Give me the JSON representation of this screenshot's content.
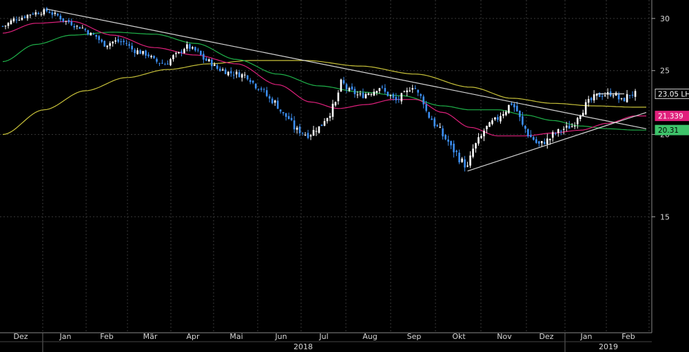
{
  "chart_data": {
    "type": "candlestick",
    "ylim": [
      10,
      32
    ],
    "grid": true,
    "x_ticks": [
      "Dez",
      "Jan",
      "Feb",
      "Mär",
      "Apr",
      "Mai",
      "Jun",
      "Jul",
      "Aug",
      "Sep",
      "Okt",
      "Nov",
      "Dez",
      "Jan",
      "Feb"
    ],
    "x_years": [
      "2018",
      "2019"
    ],
    "y_ticks": [
      15,
      20,
      25,
      30
    ],
    "last_values": {
      "price": "23.05 LH",
      "ma_magenta": "21.339",
      "ma_green": "20.31"
    },
    "colors": {
      "up": "#ffffff",
      "down": "#3c8ff2",
      "ma_magenta": "#e0207c",
      "ma_green": "#1fb24a",
      "ma_yellow": "#c9c33a",
      "trend": "#d6d6d6",
      "grid": "#3a3a3a"
    },
    "price_anchors": [
      [
        0,
        29.2
      ],
      [
        5,
        30.0
      ],
      [
        12,
        30.6
      ],
      [
        16,
        30.8
      ],
      [
        19,
        30.4
      ],
      [
        23,
        29.7
      ],
      [
        28,
        29.1
      ],
      [
        33,
        28.3
      ],
      [
        37,
        27.4
      ],
      [
        41,
        27.7
      ],
      [
        44,
        27.6
      ],
      [
        48,
        26.8
      ],
      [
        52,
        26.5
      ],
      [
        56,
        25.8
      ],
      [
        59,
        25.6
      ],
      [
        63,
        26.4
      ],
      [
        67,
        27.2
      ],
      [
        70,
        26.8
      ],
      [
        74,
        25.9
      ],
      [
        79,
        25.1
      ],
      [
        83,
        24.8
      ],
      [
        88,
        24.6
      ],
      [
        93,
        23.6
      ],
      [
        98,
        22.5
      ],
      [
        103,
        21.3
      ],
      [
        107,
        20.3
      ],
      [
        111,
        20.0
      ],
      [
        115,
        20.5
      ],
      [
        118,
        21.3
      ],
      [
        121,
        22.3
      ],
      [
        123,
        24.0
      ],
      [
        126,
        23.3
      ],
      [
        130,
        22.9
      ],
      [
        134,
        23.2
      ],
      [
        137,
        23.6
      ],
      [
        140,
        23.0
      ],
      [
        143,
        22.5
      ],
      [
        146,
        23.0
      ],
      [
        149,
        23.7
      ],
      [
        152,
        22.8
      ],
      [
        155,
        21.3
      ],
      [
        158,
        20.5
      ],
      [
        161,
        19.7
      ],
      [
        164,
        18.9
      ],
      [
        167,
        18.2
      ],
      [
        169,
        17.8
      ],
      [
        171,
        19.0
      ],
      [
        173,
        19.6
      ],
      [
        176,
        20.5
      ],
      [
        179,
        21.0
      ],
      [
        182,
        21.6
      ],
      [
        185,
        22.3
      ],
      [
        187,
        21.7
      ],
      [
        189,
        20.6
      ],
      [
        192,
        19.8
      ],
      [
        195,
        19.3
      ],
      [
        198,
        19.6
      ],
      [
        201,
        20.1
      ],
      [
        204,
        20.4
      ],
      [
        207,
        20.6
      ],
      [
        210,
        21.6
      ],
      [
        213,
        22.4
      ],
      [
        216,
        22.9
      ],
      [
        219,
        23.0
      ],
      [
        222,
        23.1
      ],
      [
        225,
        22.5
      ],
      [
        228,
        23.0
      ],
      [
        230,
        23.05
      ]
    ],
    "ma_magenta_anchors": [
      [
        0,
        28.5
      ],
      [
        12,
        29.5
      ],
      [
        25,
        29.7
      ],
      [
        40,
        28.3
      ],
      [
        55,
        27.1
      ],
      [
        70,
        26.4
      ],
      [
        85,
        25.6
      ],
      [
        100,
        23.8
      ],
      [
        112,
        22.4
      ],
      [
        122,
        21.9
      ],
      [
        132,
        22.2
      ],
      [
        142,
        22.6
      ],
      [
        150,
        22.6
      ],
      [
        160,
        21.6
      ],
      [
        170,
        20.5
      ],
      [
        180,
        19.9
      ],
      [
        190,
        19.9
      ],
      [
        200,
        20.1
      ],
      [
        210,
        20.3
      ],
      [
        220,
        20.8
      ],
      [
        230,
        21.339
      ]
    ],
    "ma_green_anchors": [
      [
        0,
        25.8
      ],
      [
        12,
        27.4
      ],
      [
        25,
        28.3
      ],
      [
        40,
        28.6
      ],
      [
        55,
        28.4
      ],
      [
        70,
        27.5
      ],
      [
        85,
        26.0
      ],
      [
        100,
        24.7
      ],
      [
        115,
        23.7
      ],
      [
        130,
        23.2
      ],
      [
        145,
        22.9
      ],
      [
        160,
        22.1
      ],
      [
        170,
        21.8
      ],
      [
        180,
        21.8
      ],
      [
        190,
        21.4
      ],
      [
        200,
        21.0
      ],
      [
        210,
        20.6
      ],
      [
        220,
        20.4
      ],
      [
        230,
        20.31
      ]
    ],
    "ma_yellow_anchors": [
      [
        0,
        20.0
      ],
      [
        15,
        21.8
      ],
      [
        30,
        23.3
      ],
      [
        45,
        24.4
      ],
      [
        60,
        25.1
      ],
      [
        75,
        25.6
      ],
      [
        90,
        25.9
      ],
      [
        110,
        25.9
      ],
      [
        130,
        25.4
      ],
      [
        150,
        24.7
      ],
      [
        170,
        23.6
      ],
      [
        185,
        22.7
      ],
      [
        200,
        22.3
      ],
      [
        215,
        22.1
      ],
      [
        230,
        22.0
      ]
    ],
    "trendlines": [
      {
        "from": [
          16,
          31.0
        ],
        "to": [
          234,
          20.4
        ]
      },
      {
        "from": [
          169,
          17.6
        ],
        "to": [
          234,
          21.6
        ]
      },
      {
        "from": [
          216,
          23.05
        ],
        "to": [
          226,
          23.05
        ]
      }
    ]
  }
}
